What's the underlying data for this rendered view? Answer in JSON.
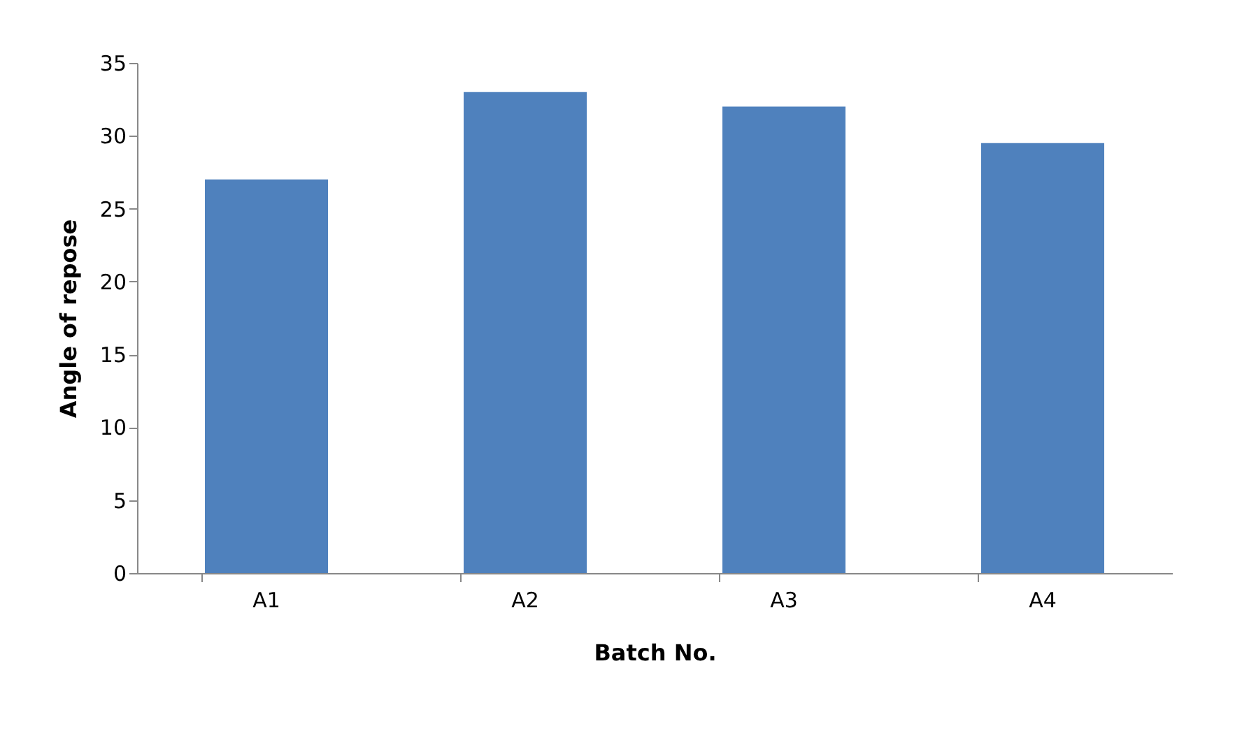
{
  "chart_data": {
    "type": "bar",
    "xlabel": "Batch No.",
    "ylabel": "Angle of repose",
    "categories": [
      "A1",
      "A2",
      "A3",
      "A4"
    ],
    "values": [
      27,
      33,
      32,
      29.5
    ],
    "color": "#4f81bd",
    "ylim": [
      0,
      35
    ],
    "yticks": [
      0,
      5,
      10,
      15,
      20,
      25,
      30,
      35
    ],
    "grid": false
  }
}
